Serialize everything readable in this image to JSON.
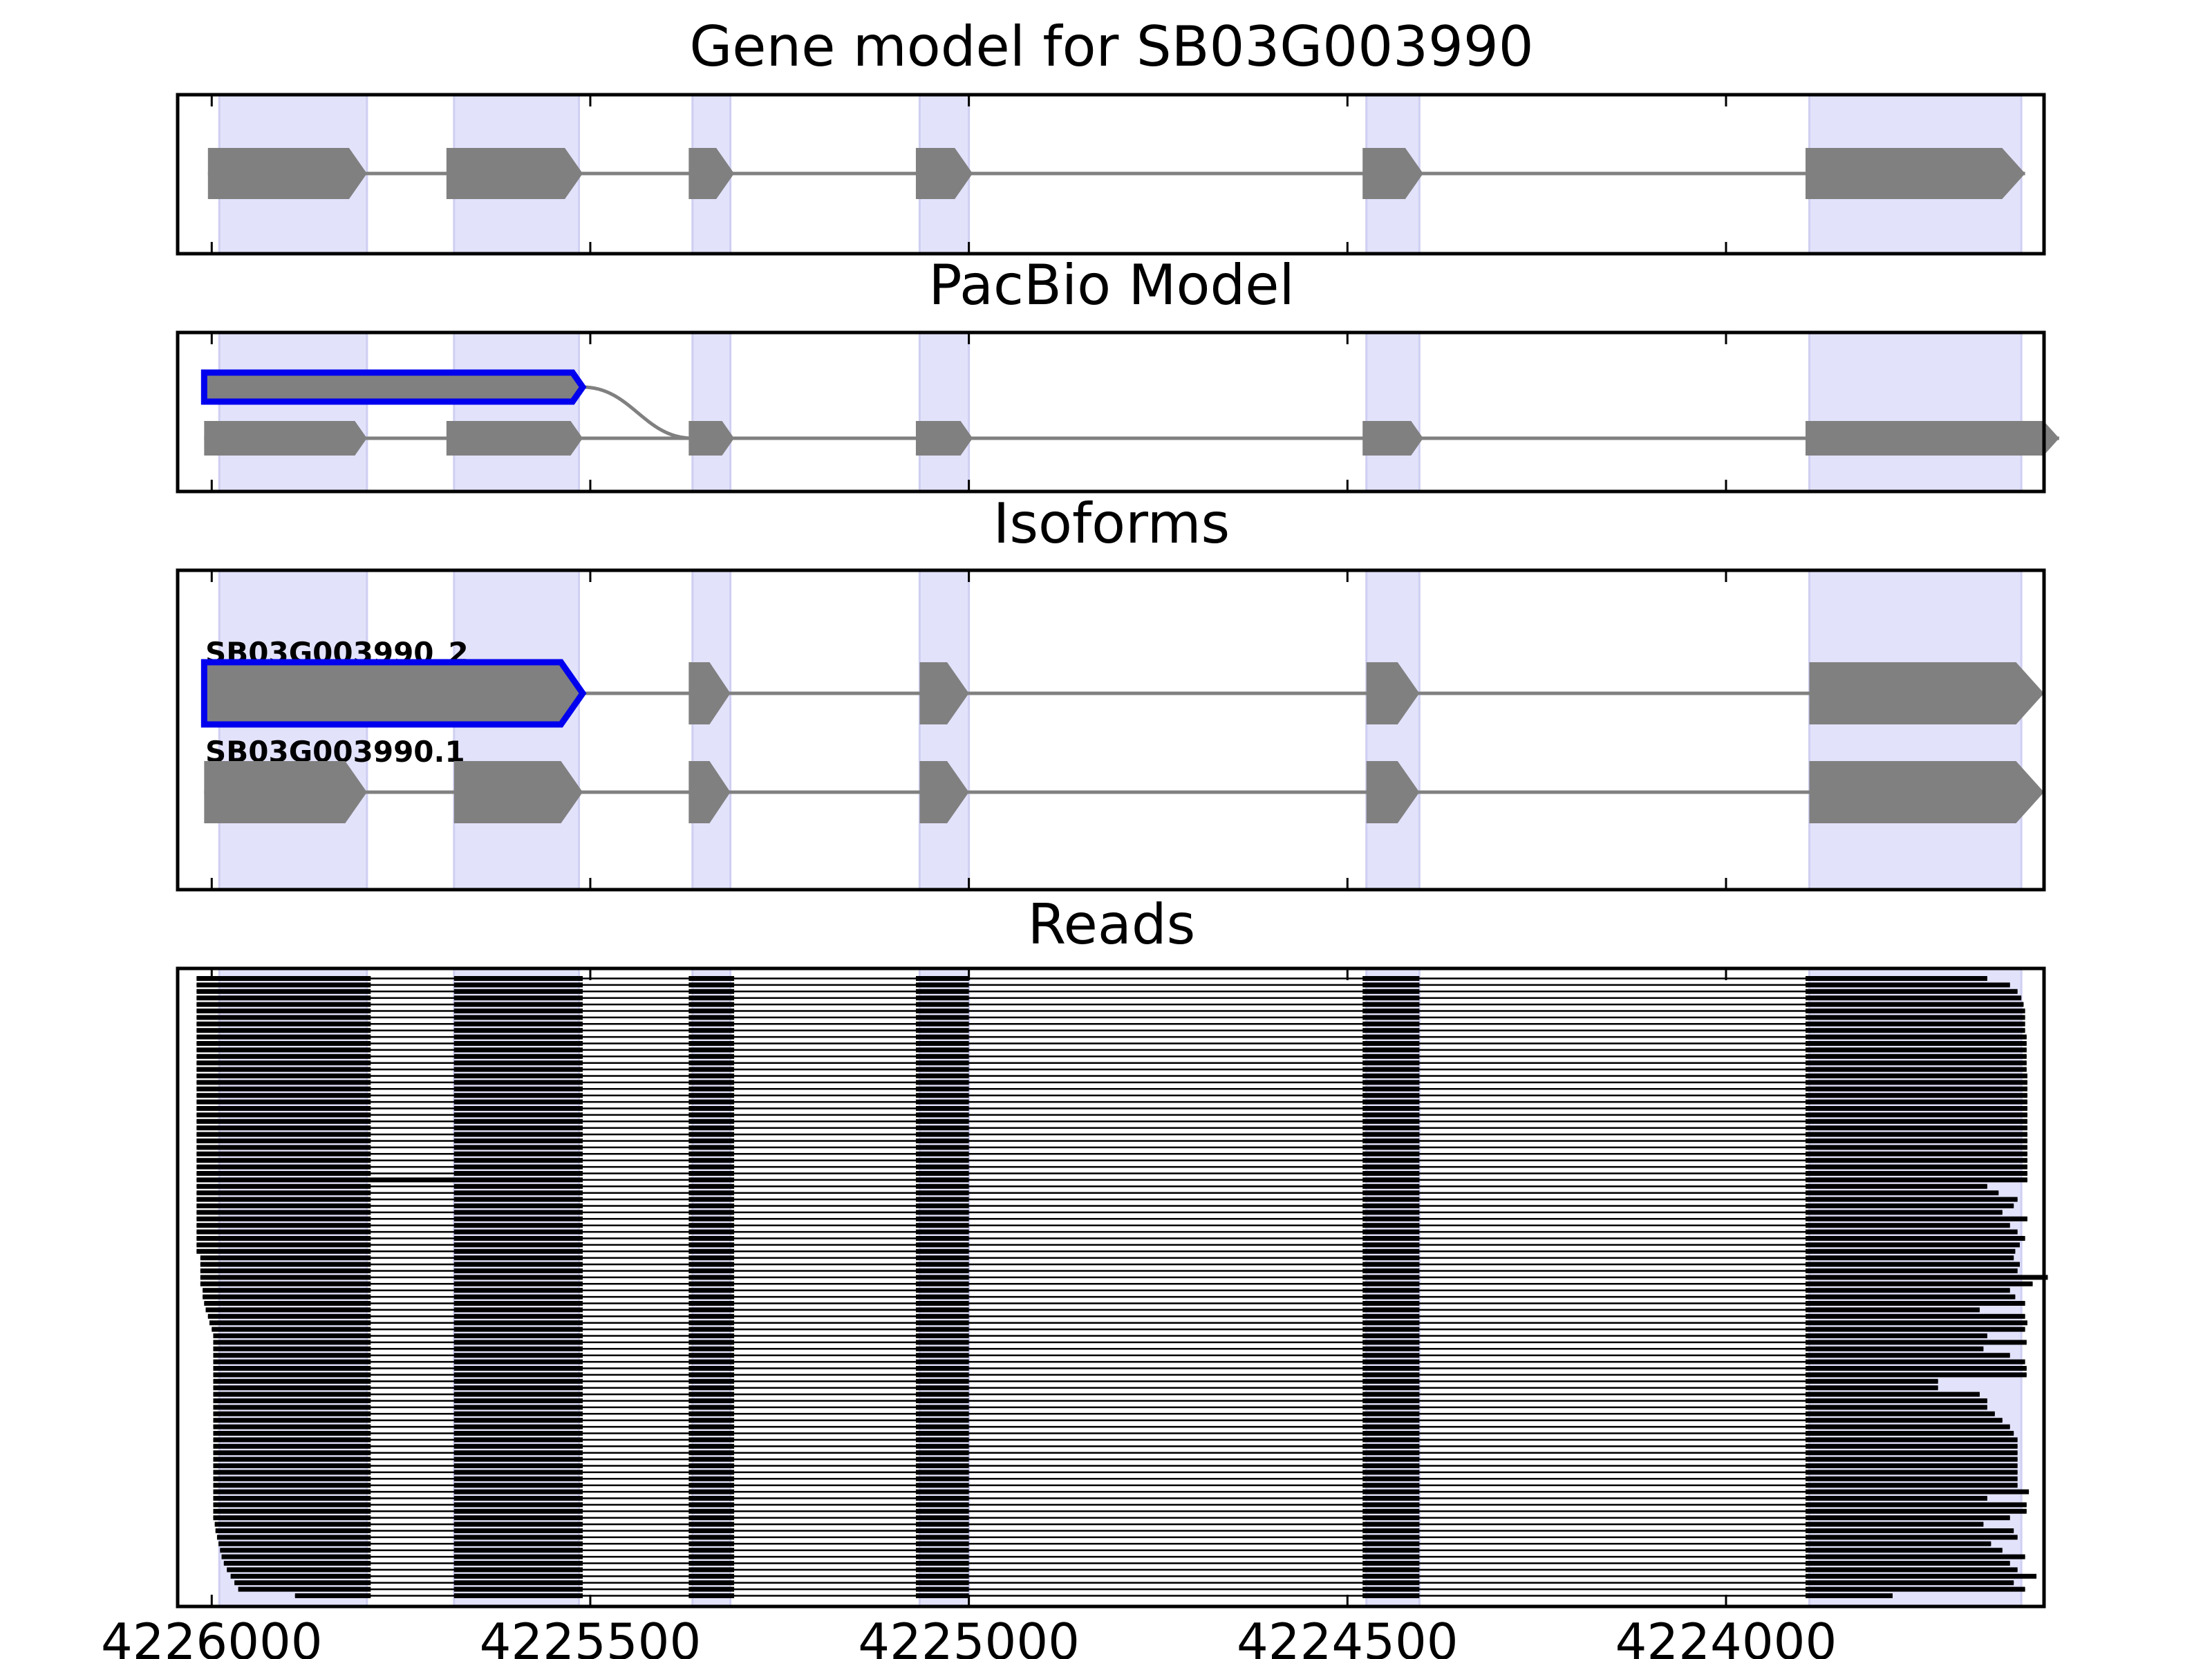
{
  "figure": {
    "panels": [
      {
        "id": "gene",
        "title": "Gene model for SB03G003990"
      },
      {
        "id": "pacbio",
        "title": "PacBio Model"
      },
      {
        "id": "isoforms",
        "title": "Isoforms"
      },
      {
        "id": "reads",
        "title": "Reads"
      }
    ],
    "x_ticks": [
      4226000,
      4225500,
      4225000,
      4224500,
      4224000
    ],
    "x_tick_labels": [
      "4226000",
      "4225500",
      "4225000",
      "4224500",
      "4224000"
    ],
    "x_range": [
      4226045,
      4223580
    ],
    "x_direction": "decreasing (minus strand)"
  },
  "chart_data": {
    "type": "gene-track",
    "exon_highlight_regions": [
      [
        4225990,
        4225795
      ],
      [
        4225680,
        4225515
      ],
      [
        4225365,
        4225315
      ],
      [
        4225065,
        4225000
      ],
      [
        4224475,
        4224405
      ],
      [
        4223890,
        4223610
      ]
    ],
    "gene_model": {
      "exons": [
        [
          4226005,
          4225795
        ],
        [
          4225690,
          4225510
        ],
        [
          4225370,
          4225310
        ],
        [
          4225070,
          4224995
        ],
        [
          4224480,
          4224400
        ],
        [
          4223895,
          4223605
        ]
      ]
    },
    "pacbio_models": [
      {
        "highlighted": true,
        "exons": [
          [
            4226010,
            4225510
          ]
        ],
        "connects_to_next_row_at": 4225365
      },
      {
        "highlighted": false,
        "exons": [
          [
            4226010,
            4225795
          ],
          [
            4225690,
            4225510
          ],
          [
            4225370,
            4225310
          ],
          [
            4225070,
            4224995
          ],
          [
            4224480,
            4224400
          ],
          [
            4223895,
            4223560
          ]
        ]
      }
    ],
    "isoforms": [
      {
        "name": "SB03G003990_2",
        "highlighted": true,
        "exons": [
          [
            4226010,
            4225510
          ],
          [
            4225370,
            4225315
          ],
          [
            4225065,
            4225000
          ],
          [
            4224475,
            4224405
          ],
          [
            4223890,
            4223580
          ]
        ]
      },
      {
        "name": "SB03G003990.1",
        "highlighted": false,
        "exons": [
          [
            4226010,
            4225795
          ],
          [
            4225680,
            4225510
          ],
          [
            4225370,
            4225315
          ],
          [
            4225065,
            4225000
          ],
          [
            4224475,
            4224405
          ],
          [
            4223890,
            4223580
          ]
        ]
      }
    ],
    "reads": {
      "count": 96,
      "shared_exons": [
        [
          4225680,
          4225510
        ],
        [
          4225370,
          4225310
        ],
        [
          4225070,
          4225000
        ],
        [
          4224480,
          4224405
        ],
        [
          4223895
        ]
      ],
      "first_exon_end": 4225790,
      "retained_intron_read_index": 31,
      "starts": [
        4226020,
        4226020,
        4226020,
        4226020,
        4226020,
        4226020,
        4226020,
        4226020,
        4226020,
        4226020,
        4226020,
        4226020,
        4226020,
        4226020,
        4226020,
        4226020,
        4226020,
        4226020,
        4226020,
        4226020,
        4226020,
        4226020,
        4226020,
        4226020,
        4226020,
        4226020,
        4226020,
        4226020,
        4226020,
        4226020,
        4226020,
        4226020,
        4226020,
        4226020,
        4226020,
        4226020,
        4226020,
        4226020,
        4226020,
        4226020,
        4226020,
        4226020,
        4226020,
        4226015,
        4226015,
        4226015,
        4226015,
        4226015,
        4226012,
        4226012,
        4226010,
        4226008,
        4226005,
        4226003,
        4226000,
        4225998,
        4225998,
        4225998,
        4225998,
        4225998,
        4225998,
        4225998,
        4225998,
        4225998,
        4225998,
        4225998,
        4225998,
        4225998,
        4225998,
        4225998,
        4225998,
        4225998,
        4225998,
        4225998,
        4225998,
        4225998,
        4225998,
        4225998,
        4225998,
        4225998,
        4225998,
        4225998,
        4225998,
        4225998,
        4225996,
        4225995,
        4225993,
        4225991,
        4225989,
        4225987,
        4225984,
        4225980,
        4225975,
        4225970,
        4225965,
        4225890
      ],
      "ends": [
        4223655,
        4223625,
        4223615,
        4223610,
        4223607,
        4223605,
        4223605,
        4223605,
        4223605,
        4223603,
        4223603,
        4223603,
        4223603,
        4223603,
        4223603,
        4223602,
        4223602,
        4223602,
        4223602,
        4223602,
        4223602,
        4223602,
        4223602,
        4223602,
        4223602,
        4223602,
        4223602,
        4223602,
        4223602,
        4223602,
        4223602,
        4223602,
        4223655,
        4223640,
        4223615,
        4223620,
        4223635,
        4223602,
        4223625,
        4223615,
        4223605,
        4223612,
        4223618,
        4223620,
        4223612,
        4223615,
        4223575,
        4223595,
        4223625,
        4223618,
        4223605,
        4223665,
        4223605,
        4223602,
        4223605,
        4223655,
        4223603,
        4223660,
        4223625,
        4223605,
        4223603,
        4223603,
        4223720,
        4223720,
        4223665,
        4223655,
        4223655,
        4223645,
        4223635,
        4223625,
        4223620,
        4223615,
        4223615,
        4223615,
        4223615,
        4223615,
        4223615,
        4223615,
        4223615,
        4223600,
        4223655,
        4223603,
        4223603,
        4223625,
        4223660,
        4223620,
        4223615,
        4223650,
        4223635,
        4223605,
        4223625,
        4223615,
        4223590,
        4223620,
        4223605,
        4223780
      ]
    }
  }
}
